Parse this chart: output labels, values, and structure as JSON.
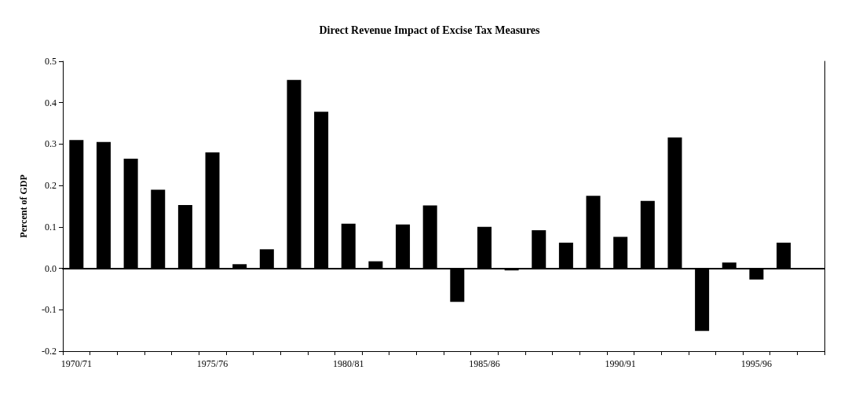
{
  "chart_data": {
    "type": "bar",
    "title": "Direct Revenue Impact of Excise Tax Measures",
    "ylabel": "Percent of GDP",
    "categories": [
      "1970/71",
      null,
      null,
      null,
      null,
      "1975/76",
      null,
      null,
      null,
      null,
      "1980/81",
      null,
      null,
      null,
      null,
      "1985/86",
      null,
      null,
      null,
      null,
      "1990/91",
      null,
      null,
      null,
      null,
      "1995/96",
      null,
      null
    ],
    "values": [
      0.31,
      0.305,
      0.265,
      0.19,
      0.153,
      0.28,
      0.01,
      0.046,
      0.455,
      0.378,
      0.108,
      0.017,
      0.106,
      0.152,
      -0.081,
      0.1,
      -0.005,
      0.092,
      0.062,
      0.175,
      0.076,
      0.163,
      0.316,
      -0.151,
      0.014,
      -0.027,
      0.062,
      null
    ],
    "color": "#000000",
    "ylim": [
      -0.2,
      0.5
    ],
    "yticks": [
      {
        "value": -0.2,
        "label": "-0.2"
      },
      {
        "value": -0.1,
        "label": "-0.1"
      },
      {
        "value": 0,
        "label": "0.0"
      },
      {
        "value": 0.1,
        "label": "0.1"
      },
      {
        "value": 0.2,
        "label": "0.2"
      },
      {
        "value": 0.3,
        "label": "0.3"
      },
      {
        "value": 0.4,
        "label": "0.4"
      },
      {
        "value": 0.5,
        "label": "0.5"
      }
    ],
    "data_labels": false
  }
}
